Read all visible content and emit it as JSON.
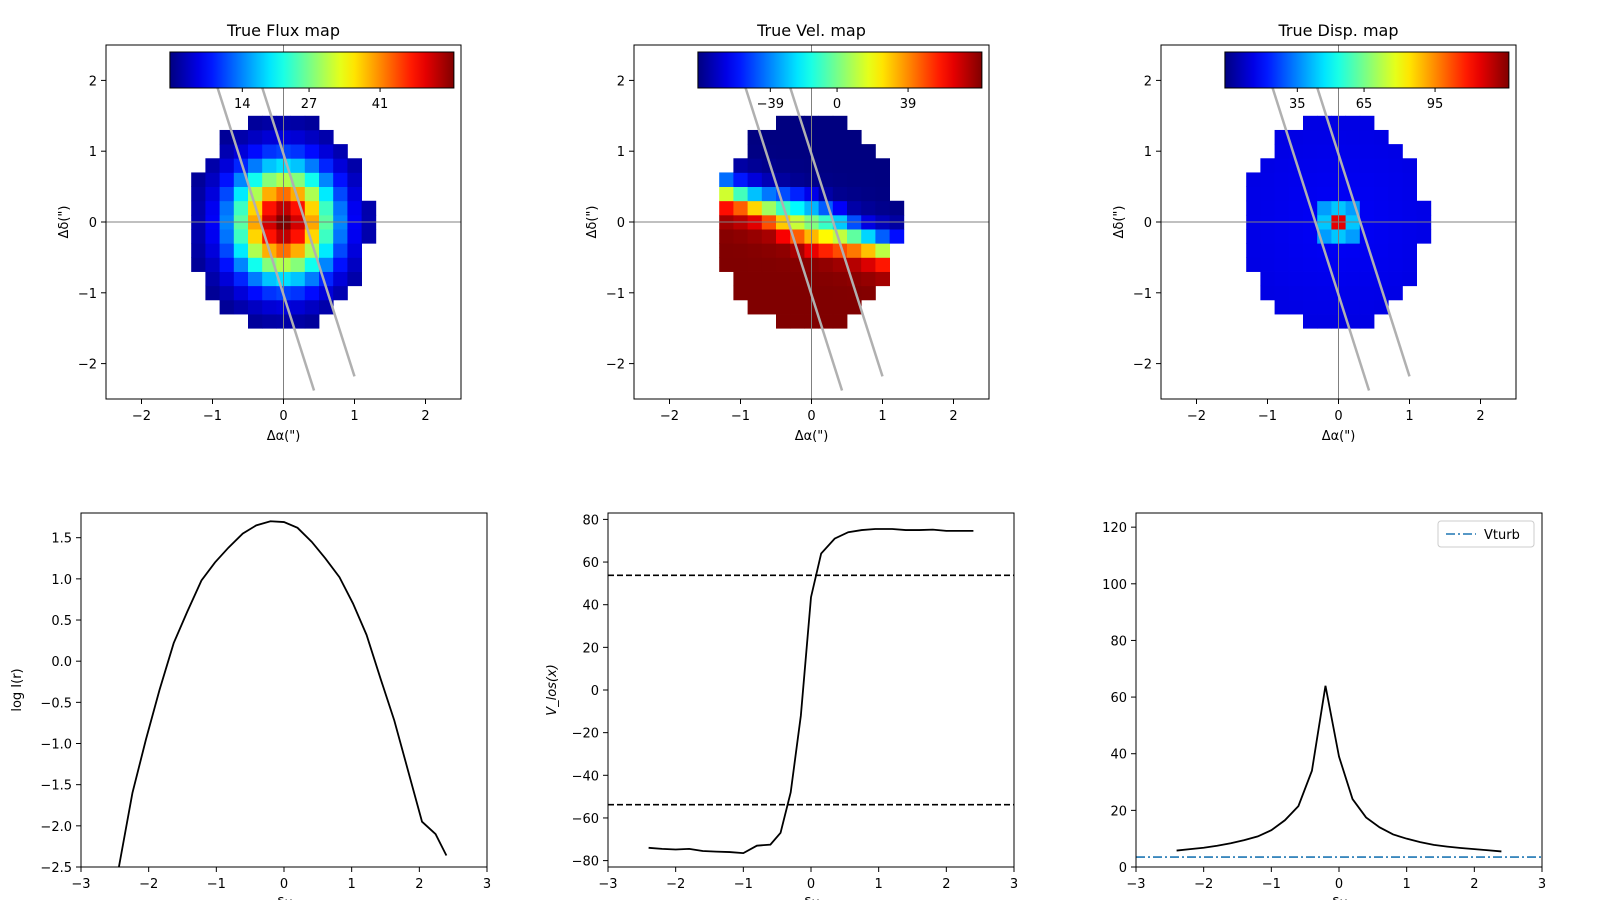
{
  "maps": [
    {
      "title": "True Flux map",
      "xlabel": "Δα(\")",
      "ylabel": "Δδ(\")",
      "xlim": [
        -2.5,
        2.5
      ],
      "ylim": [
        -2.5,
        2.5
      ],
      "xticks": [
        "−2",
        "−1",
        "0",
        "1",
        "2"
      ],
      "yticks": [
        "−2",
        "−1",
        "0",
        "1",
        "2"
      ],
      "colorbar_ticks": [
        "14",
        "27",
        "41"
      ],
      "kind": "flux"
    },
    {
      "title": "True Vel. map",
      "xlabel": "Δα(\")",
      "ylabel": "Δδ(\")",
      "xlim": [
        -2.5,
        2.5
      ],
      "ylim": [
        -2.5,
        2.5
      ],
      "xticks": [
        "−2",
        "−1",
        "0",
        "1",
        "2"
      ],
      "yticks": [
        "−2",
        "−1",
        "0",
        "1",
        "2"
      ],
      "colorbar_ticks": [
        "−39",
        "0",
        "39"
      ],
      "kind": "vel"
    },
    {
      "title": "True Disp. map",
      "xlabel": "Δα(\")",
      "ylabel": "Δδ(\")",
      "xlim": [
        -2.5,
        2.5
      ],
      "ylim": [
        -2.5,
        2.5
      ],
      "xticks": [
        "−2",
        "−1",
        "0",
        "1",
        "2"
      ],
      "yticks": [
        "−2",
        "−1",
        "0",
        "1",
        "2"
      ],
      "colorbar_ticks": [
        "35",
        "65",
        "95"
      ],
      "kind": "disp"
    }
  ],
  "slit": {
    "lines": [
      [
        [
          -0.93,
          1.9
        ],
        [
          0.43,
          -2.38
        ]
      ],
      [
        [
          -0.3,
          1.9
        ],
        [
          1.0,
          -2.18
        ]
      ]
    ],
    "color": "#b0b0b0"
  },
  "chart_data": [
    {
      "type": "line",
      "title": "",
      "xlabel": "δx",
      "ylabel": "log I(r)",
      "xlim": [
        -3,
        3
      ],
      "ylim": [
        -2.5,
        1.8
      ],
      "xticks": [
        "−3",
        "−2",
        "−1",
        "0",
        "1",
        "2",
        "3"
      ],
      "yticks": [
        "−2.5",
        "−2.0",
        "−1.5",
        "−1.0",
        "−0.5",
        "0.0",
        "0.5",
        "1.0",
        "1.5"
      ],
      "x": [
        -2.44,
        -2.24,
        -2.04,
        -1.84,
        -1.63,
        -1.43,
        -1.22,
        -1.02,
        -0.82,
        -0.61,
        -0.41,
        -0.2,
        0.0,
        0.2,
        0.41,
        0.61,
        0.82,
        1.02,
        1.22,
        1.43,
        1.63,
        1.84,
        2.04,
        2.24,
        2.4
      ],
      "y": [
        -2.5,
        -1.6,
        -0.95,
        -0.35,
        0.22,
        0.6,
        0.98,
        1.2,
        1.38,
        1.55,
        1.65,
        1.7,
        1.69,
        1.62,
        1.45,
        1.25,
        1.02,
        0.7,
        0.32,
        -0.22,
        -0.72,
        -1.35,
        -1.95,
        -2.1,
        -2.36
      ]
    },
    {
      "type": "line",
      "title": "",
      "xlabel": "δx",
      "ylabel": "V_los(x)",
      "xlim": [
        -3,
        3
      ],
      "ylim": [
        -83,
        83
      ],
      "xticks": [
        "−3",
        "−2",
        "−1",
        "0",
        "1",
        "2",
        "3"
      ],
      "yticks": [
        "−80",
        "−60",
        "−40",
        "−20",
        "0",
        "20",
        "40",
        "60",
        "80"
      ],
      "x": [
        -2.4,
        -2.2,
        -2.0,
        -1.8,
        -1.6,
        -1.4,
        -1.2,
        -1.0,
        -0.8,
        -0.6,
        -0.45,
        -0.3,
        -0.15,
        0.0,
        0.15,
        0.35,
        0.55,
        0.75,
        0.95,
        1.2,
        1.4,
        1.6,
        1.8,
        2.0,
        2.2,
        2.4
      ],
      "y": [
        -74,
        -74.5,
        -74.8,
        -74.5,
        -75.5,
        -75.8,
        -76,
        -76.5,
        -73,
        -72.5,
        -67,
        -48,
        -12,
        43.5,
        64,
        71,
        74,
        75,
        75.5,
        75.5,
        75,
        75,
        75.2,
        74.6,
        74.6,
        74.6
      ],
      "hlines": [
        53.8,
        -53.8
      ]
    },
    {
      "type": "line",
      "title": "",
      "xlabel": "δx",
      "ylabel": "",
      "xlim": [
        -3,
        3
      ],
      "ylim": [
        0,
        125
      ],
      "xticks": [
        "−3",
        "−2",
        "−1",
        "0",
        "1",
        "2",
        "3"
      ],
      "yticks": [
        "0",
        "20",
        "40",
        "60",
        "80",
        "100",
        "120"
      ],
      "x": [
        -2.4,
        -2.2,
        -2.0,
        -1.8,
        -1.6,
        -1.4,
        -1.2,
        -1.0,
        -0.8,
        -0.6,
        -0.4,
        -0.2,
        0.0,
        0.2,
        0.4,
        0.6,
        0.8,
        1.0,
        1.2,
        1.4,
        1.6,
        1.8,
        2.0,
        2.2,
        2.4
      ],
      "y": [
        5.8,
        6.3,
        6.8,
        7.5,
        8.4,
        9.5,
        10.8,
        13,
        16.5,
        21.5,
        34,
        64,
        39,
        24,
        17.5,
        14,
        11.5,
        10,
        8.8,
        7.8,
        7.2,
        6.7,
        6.3,
        5.9,
        5.5
      ],
      "hline": 3.5,
      "legend": "Vturb",
      "legend_color": "#1f77b4"
    }
  ]
}
